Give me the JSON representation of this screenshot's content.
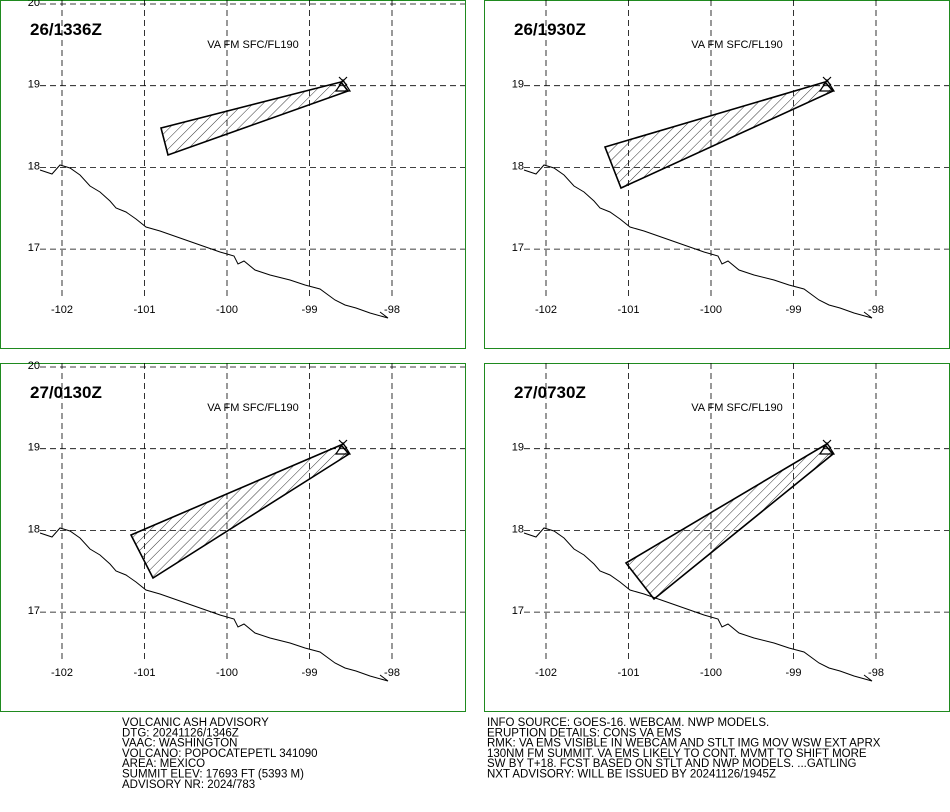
{
  "panels": [
    {
      "time": "26/1336Z",
      "subtitle": "VA FM SFC/FL190",
      "lat_ticks": [
        20,
        19,
        18,
        17
      ],
      "lon_ticks": [
        -102,
        -101,
        -100,
        -99,
        -98
      ]
    },
    {
      "time": "26/1930Z",
      "subtitle": "VA FM SFC/FL190",
      "lat_ticks": [
        19,
        18,
        17
      ],
      "lon_ticks": [
        -102,
        -101,
        -100,
        -99,
        -98
      ]
    },
    {
      "time": "27/0130Z",
      "subtitle": "VA FM SFC/FL190",
      "lat_ticks": [
        20,
        19,
        18,
        17
      ],
      "lon_ticks": [
        -102,
        -101,
        -100,
        -99,
        -98
      ]
    },
    {
      "time": "27/0730Z",
      "subtitle": "VA FM SFC/FL190",
      "lat_ticks": [
        19,
        18,
        17
      ],
      "lon_ticks": [
        -102,
        -101,
        -100,
        -99,
        -98
      ]
    }
  ],
  "advisory_left": [
    "VOLCANIC ASH ADVISORY",
    "DTG: 20241126/1346Z",
    "VAAC: WASHINGTON",
    "VOLCANO: POPOCATEPETL 341090",
    "AREA: MEXICO",
    "SUMMIT ELEV: 17693 FT (5393 M)",
    "ADVISORY NR: 2024/783"
  ],
  "advisory_right": [
    "INFO SOURCE: GOES-16. WEBCAM. NWP MODELS.",
    "ERUPTION DETAILS: CONS VA EMS",
    "RMK: VA EMS VISIBLE IN WEBCAM AND STLT IMG MOV WSW EXT APRX",
    "130NM FM SUMMIT. VA EMS LIKELY TO CONT. MVMT TO SHIFT MORE",
    "SW BY T+18. FCST BASED ON STLT AND NWP MODELS. ...GATLING",
    "NXT ADVISORY: WILL BE ISSUED BY 20241126/1945Z"
  ]
}
